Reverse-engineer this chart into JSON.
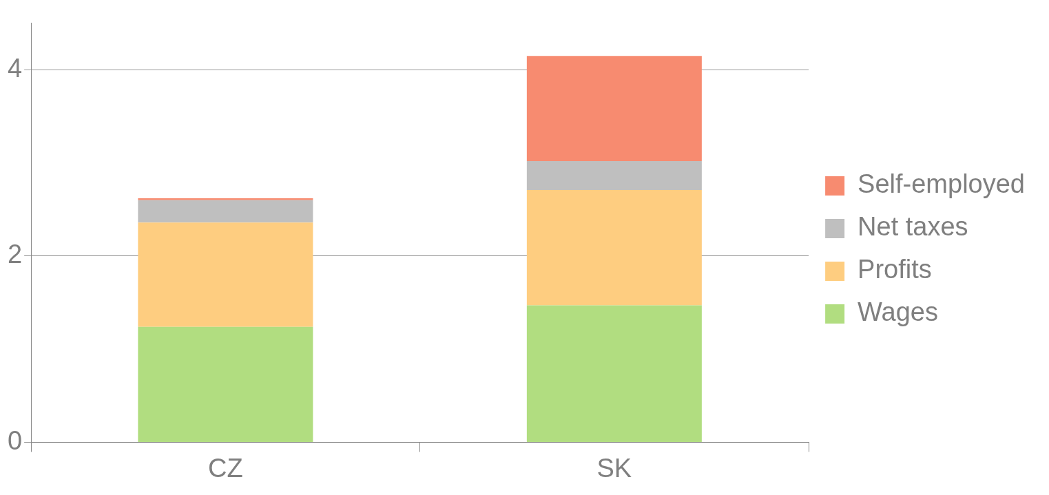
{
  "chart_data": {
    "type": "bar",
    "stacked": true,
    "categories": [
      "CZ",
      "SK"
    ],
    "series": [
      {
        "name": "Wages",
        "color": "#b1dd80",
        "values": [
          1.24,
          1.47
        ]
      },
      {
        "name": "Profits",
        "color": "#fecd80",
        "values": [
          1.12,
          1.24
        ]
      },
      {
        "name": "Net taxes",
        "color": "#bfbfbf",
        "values": [
          0.24,
          0.31
        ]
      },
      {
        "name": "Self-employed",
        "color": "#f78b70",
        "values": [
          0.02,
          1.13
        ]
      }
    ],
    "ylim": [
      0,
      4.5
    ],
    "yticks": [
      0,
      2,
      4
    ],
    "grid": "y",
    "legend": "right"
  }
}
